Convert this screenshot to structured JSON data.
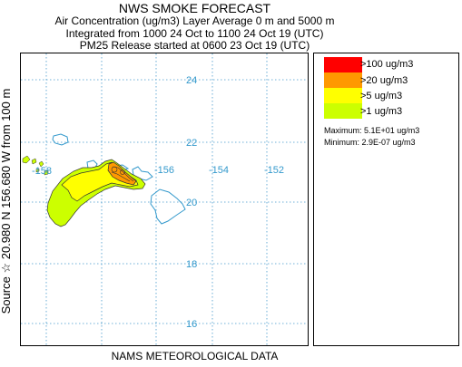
{
  "header": {
    "title": "NWS SMOKE FORECAST",
    "line2": "Air Concentration (ug/m3) Layer Average    0 m and  5000 m",
    "line3": "Integrated from 1000 24 Oct to 1100 24 Oct 19 (UTC)",
    "line4": "PM25 Release started at 0600 23 Oct 19 (UTC)"
  },
  "source_label": "Source ☆  20.980  N 156.680  W   from  100 m",
  "map": {
    "lat_labels": [
      "24",
      "22",
      "20",
      "18",
      "16"
    ],
    "lon_labels": [
      "-156",
      "-154",
      "-152"
    ],
    "partial_lon_label": "-158"
  },
  "legend": {
    "items": [
      {
        "label": ">100 ug/m3",
        "color": "#ff0000"
      },
      {
        "label": ">20 ug/m3",
        "color": "#ff9900"
      },
      {
        "label": ">5 ug/m3",
        "color": "#ffff00"
      },
      {
        "label": ">1 ug/m3",
        "color": "#ccff00"
      }
    ],
    "maximum": "Maximum:  5.1E+01 ug/m3",
    "minimum": "Minimum:  2.9E-07 ug/m3"
  },
  "footer": "NAMS METEOROLOGICAL DATA",
  "colors": {
    "grid": "#4499cc",
    "coast": "#3399cc",
    "label": "#3399cc"
  }
}
